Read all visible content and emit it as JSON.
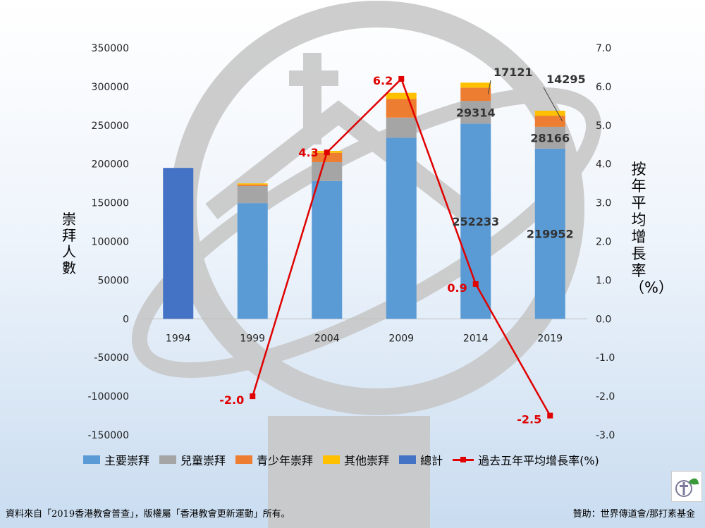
{
  "chart_data": {
    "type": "bar",
    "categories": [
      "1994",
      "1999",
      "2004",
      "2009",
      "2014",
      "2019"
    ],
    "stacked": true,
    "series": [
      {
        "name": "主要崇拜",
        "color": "#5b9bd5",
        "values": [
          0,
          149500,
          178000,
          234000,
          252233,
          219952
        ]
      },
      {
        "name": "兒童崇拜",
        "color": "#a5a5a5",
        "values": [
          0,
          22000,
          24500,
          26000,
          29314,
          28166
        ]
      },
      {
        "name": "青少年崇拜",
        "color": "#ed7d31",
        "values": [
          0,
          2000,
          12000,
          24000,
          17121,
          14295
        ]
      },
      {
        "name": "其他崇拜",
        "color": "#ffc000",
        "values": [
          0,
          1500,
          2500,
          8000,
          6500,
          6500
        ]
      },
      {
        "name": "總計",
        "color": "#4472c4",
        "values": [
          195000,
          null,
          null,
          null,
          null,
          null
        ]
      }
    ],
    "line_series": {
      "name": "過去五年平均增長率(%)",
      "color": "#e00000",
      "axis": "right",
      "values": [
        null,
        -2.0,
        4.3,
        6.2,
        0.9,
        -2.5
      ]
    },
    "ylabel": "崇拜人數",
    "y2label": "按年平均增長率（%）",
    "ylim": [
      -150000,
      350000
    ],
    "y2lim": [
      -3.0,
      7.0
    ],
    "yticks": [
      "350000",
      "300000",
      "250000",
      "200000",
      "150000",
      "100000",
      "50000",
      "0",
      "-50000",
      "-100000",
      "-150000"
    ],
    "y2ticks": [
      "7.0",
      "6.0",
      "5.0",
      "4.0",
      "3.0",
      "2.0",
      "1.0",
      "0.0",
      "-1.0",
      "-2.0",
      "-3.0"
    ],
    "line_labels": [
      "-2.0",
      "4.3",
      "6.2",
      "0.9",
      "-2.5"
    ],
    "bar_labels": [
      "252233",
      "219952",
      "29314",
      "28166",
      "17121",
      "14295"
    ],
    "legend_position": "bottom"
  },
  "footer": {
    "source": "資料來自「2019香港教會普查」，版權屬「香港教會更新運動」所有。",
    "sponsor": "贊助：世界傳道會/那打素基金"
  }
}
